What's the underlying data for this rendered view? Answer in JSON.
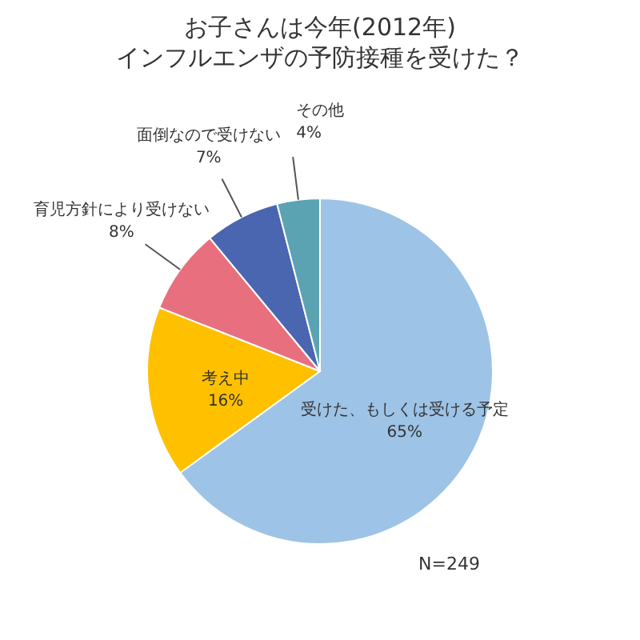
{
  "chart_data": {
    "type": "pie",
    "title": "お子さんは今年(2012年)\nインフルエンザの予防接種を受けた？",
    "categories": [
      "受けた、もしくは受ける予定",
      "考え中",
      "育児方針により受けない",
      "面倒なので受けない",
      "その他"
    ],
    "values": [
      65,
      16,
      8,
      7,
      4
    ],
    "colors": [
      "#9dc3e6",
      "#ffc000",
      "#e8707e",
      "#4a66b0",
      "#5ba3b3"
    ],
    "value_labels": [
      "65%",
      "16%",
      "8%",
      "7%",
      "4%"
    ],
    "annotations": [
      "N=249"
    ]
  }
}
